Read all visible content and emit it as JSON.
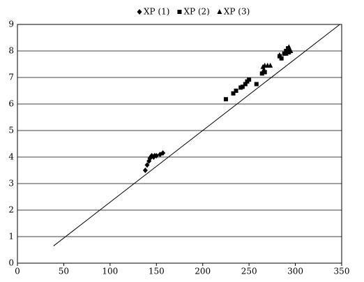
{
  "chart_data": {
    "type": "scatter",
    "xlim": [
      0,
      350
    ],
    "xticks": [
      0,
      50,
      100,
      150,
      200,
      250,
      300,
      350
    ],
    "ylim": [
      0,
      9
    ],
    "yticks": [
      0,
      1,
      2,
      3,
      4,
      5,
      6,
      7,
      8,
      9
    ],
    "grid": true,
    "legend": "top",
    "series": [
      {
        "name": "XP (1)",
        "color": "#000000",
        "marker": "diamond",
        "x": [
          138,
          140,
          142,
          143,
          144,
          145,
          147,
          148,
          150,
          154,
          157
        ],
        "values": [
          3.5,
          3.7,
          3.85,
          3.95,
          4.0,
          4.05,
          4.0,
          4.05,
          4.05,
          4.1,
          4.15
        ]
      },
      {
        "name": "XP (2)",
        "color": "#000000",
        "marker": "square",
        "x": [
          225,
          233,
          236,
          241,
          243,
          246,
          248,
          250,
          258,
          264,
          267,
          283,
          285,
          288,
          290,
          292,
          293
        ],
        "values": [
          6.18,
          6.4,
          6.5,
          6.62,
          6.65,
          6.75,
          6.85,
          6.92,
          6.75,
          7.15,
          7.2,
          7.8,
          7.72,
          7.9,
          8.0,
          8.1,
          7.95
        ]
      },
      {
        "name": "XP (3)",
        "color": "#000000",
        "marker": "triangle",
        "x": [
          265,
          266,
          267,
          270,
          273,
          283,
          290,
          291,
          292,
          293,
          295
        ],
        "values": [
          7.4,
          7.3,
          7.45,
          7.45,
          7.45,
          7.85,
          7.9,
          7.95,
          8.05,
          8.15,
          8.0
        ]
      }
    ],
    "line": {
      "color": "#000000",
      "x": [
        39,
        348
      ],
      "values": [
        0.65,
        9
      ]
    }
  }
}
